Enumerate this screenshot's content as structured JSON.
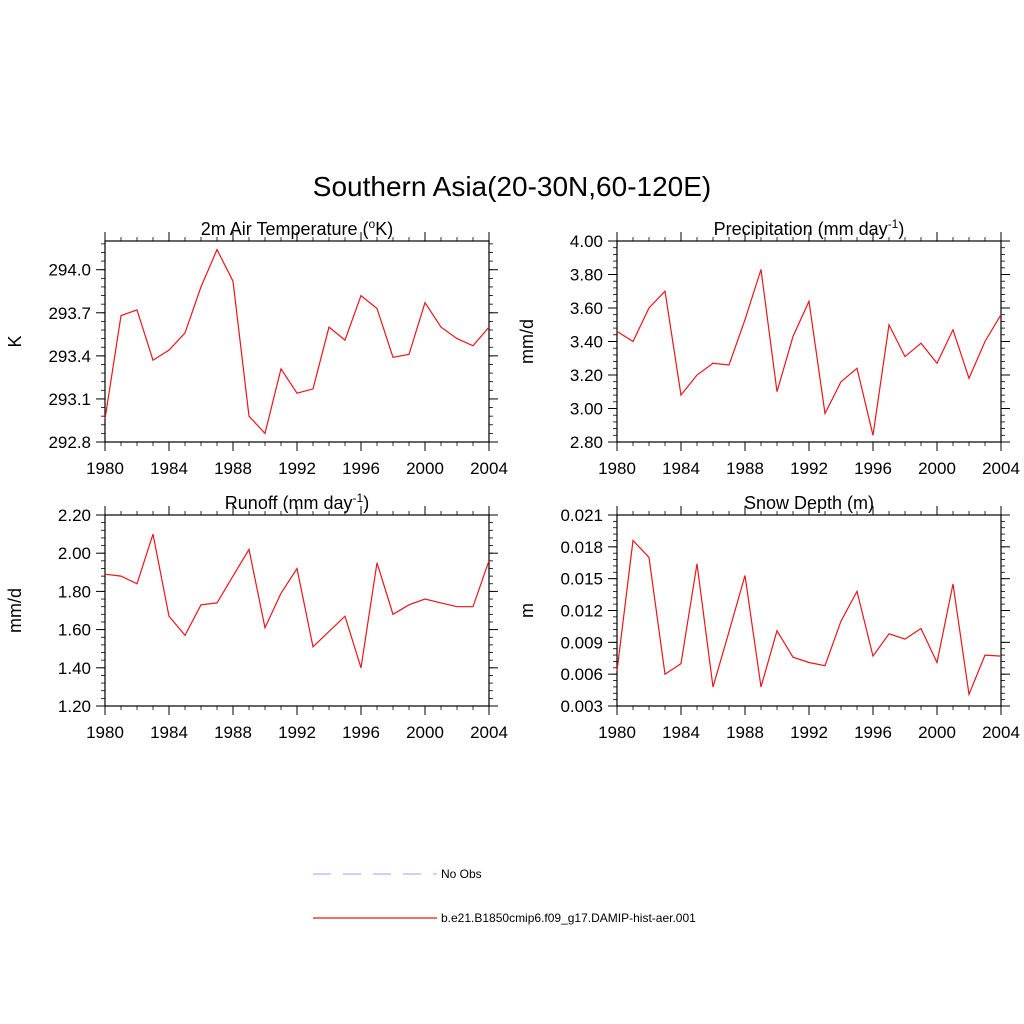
{
  "figure": {
    "title": "Southern Asia(20-30N,60-120E)"
  },
  "chart_data": [
    {
      "type": "line",
      "title": "2m Air Temperature",
      "title_unit_prefix": " (",
      "title_unit_sup": "o",
      "title_unit_suffix": "K)",
      "ylabel": "K",
      "xlim": [
        1980,
        2004
      ],
      "ylim": [
        292.8,
        294.2
      ],
      "xticks": [
        1980,
        1984,
        1988,
        1992,
        1996,
        2000,
        2004
      ],
      "yticks": [
        "292.8",
        "293.1",
        "293.4",
        "293.7",
        "294.0"
      ],
      "series": [
        {
          "color": "#e8161b",
          "x": [
            1980,
            1981,
            1982,
            1983,
            1984,
            1985,
            1986,
            1987,
            1988,
            1989,
            1990,
            1991,
            1992,
            1993,
            1994,
            1995,
            1996,
            1997,
            1998,
            1999,
            2000,
            2001,
            2002,
            2003,
            2004
          ],
          "values": [
            292.96,
            293.68,
            293.72,
            293.37,
            293.44,
            293.56,
            293.88,
            294.14,
            293.92,
            292.98,
            292.86,
            293.31,
            293.14,
            293.17,
            293.6,
            293.51,
            293.82,
            293.73,
            293.39,
            293.41,
            293.77,
            293.6,
            293.52,
            293.47,
            293.6
          ]
        }
      ]
    },
    {
      "type": "line",
      "title": "Precipitation",
      "title_unit_prefix": " (mm day",
      "title_unit_sup": "-1",
      "title_unit_suffix": ")",
      "ylabel": "mm/d",
      "xlim": [
        1980,
        2004
      ],
      "ylim": [
        2.8,
        4.0
      ],
      "xticks": [
        1980,
        1984,
        1988,
        1992,
        1996,
        2000,
        2004
      ],
      "yticks": [
        "2.80",
        "3.00",
        "3.20",
        "3.40",
        "3.60",
        "3.80",
        "4.00"
      ],
      "series": [
        {
          "color": "#e8161b",
          "x": [
            1980,
            1981,
            1982,
            1983,
            1984,
            1985,
            1986,
            1987,
            1988,
            1989,
            1990,
            1991,
            1992,
            1993,
            1994,
            1995,
            1996,
            1997,
            1998,
            1999,
            2000,
            2001,
            2002,
            2003,
            2004
          ],
          "values": [
            3.46,
            3.4,
            3.6,
            3.7,
            3.08,
            3.2,
            3.27,
            3.26,
            3.53,
            3.83,
            3.1,
            3.43,
            3.64,
            2.97,
            3.16,
            3.24,
            2.84,
            3.5,
            3.31,
            3.39,
            3.27,
            3.47,
            3.18,
            3.4,
            3.56
          ]
        }
      ]
    },
    {
      "type": "line",
      "title": "Runoff",
      "title_unit_prefix": " (mm day",
      "title_unit_sup": "-1",
      "title_unit_suffix": ")",
      "ylabel": "mm/d",
      "xlim": [
        1980,
        2004
      ],
      "ylim": [
        1.2,
        2.2
      ],
      "xticks": [
        1980,
        1984,
        1988,
        1992,
        1996,
        2000,
        2004
      ],
      "yticks": [
        "1.20",
        "1.40",
        "1.60",
        "1.80",
        "2.00",
        "2.20"
      ],
      "series": [
        {
          "color": "#e8161b",
          "x": [
            1980,
            1981,
            1982,
            1983,
            1984,
            1985,
            1986,
            1987,
            1988,
            1989,
            1990,
            1991,
            1992,
            1993,
            1994,
            1995,
            1996,
            1997,
            1998,
            1999,
            2000,
            2001,
            2002,
            2003,
            2004
          ],
          "values": [
            1.89,
            1.88,
            1.84,
            2.1,
            1.67,
            1.57,
            1.73,
            1.74,
            1.88,
            2.02,
            1.61,
            1.79,
            1.92,
            1.51,
            1.59,
            1.67,
            1.4,
            1.95,
            1.68,
            1.73,
            1.76,
            1.74,
            1.72,
            1.72,
            1.96
          ]
        }
      ]
    },
    {
      "type": "line",
      "title": "Snow Depth (m)",
      "title_unit_prefix": "",
      "title_unit_sup": "",
      "title_unit_suffix": "",
      "ylabel": "m",
      "xlim": [
        1980,
        2004
      ],
      "ylim": [
        0.003,
        0.021
      ],
      "xticks": [
        1980,
        1984,
        1988,
        1992,
        1996,
        2000,
        2004
      ],
      "yticks": [
        "0.003",
        "0.006",
        "0.009",
        "0.012",
        "0.015",
        "0.018",
        "0.021"
      ],
      "series": [
        {
          "color": "#e8161b",
          "x": [
            1980,
            1981,
            1982,
            1983,
            1984,
            1985,
            1986,
            1987,
            1988,
            1989,
            1990,
            1991,
            1992,
            1993,
            1994,
            1995,
            1996,
            1997,
            1998,
            1999,
            2000,
            2001,
            2002,
            2003,
            2004
          ],
          "values": [
            0.0063,
            0.0186,
            0.017,
            0.006,
            0.007,
            0.0164,
            0.0048,
            0.01,
            0.0153,
            0.0048,
            0.0101,
            0.0076,
            0.0071,
            0.0068,
            0.011,
            0.0138,
            0.0077,
            0.0098,
            0.0093,
            0.0103,
            0.0071,
            0.0145,
            0.0041,
            0.0078,
            0.0077
          ]
        }
      ]
    }
  ],
  "legend": {
    "entries": [
      {
        "label": "No Obs",
        "color": "#aab4ff",
        "style": "dashed"
      },
      {
        "label": "b.e21.B1850cmip6.f09_g17.DAMIP-hist-aer.001",
        "color": "#e8161b",
        "style": "solid"
      }
    ]
  }
}
